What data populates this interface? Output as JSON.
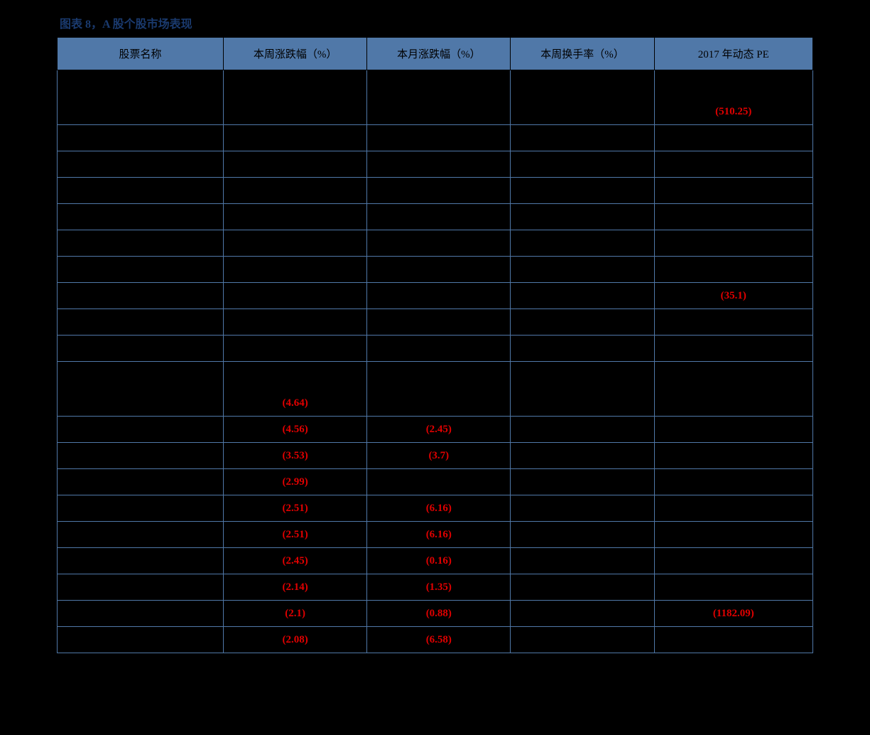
{
  "title": "图表 8，A 股个股市场表现",
  "table": {
    "header_bg": "#5078a8",
    "border_color": "#5078a8",
    "neg_color": "#e00000",
    "columns": [
      "股票名称",
      "本周涨跌幅（%）",
      "本月涨跌幅（%）",
      "本周换手率（%）",
      "2017 年动态 PE"
    ],
    "sections": [
      {
        "label": "",
        "rows": [
          {
            "cells": [
              "",
              "",
              "",
              "",
              {
                "text": "(510.25)",
                "neg": true
              }
            ]
          },
          {
            "cells": [
              "",
              "",
              "",
              "",
              ""
            ]
          },
          {
            "cells": [
              "",
              "",
              "",
              "",
              ""
            ]
          },
          {
            "cells": [
              "",
              "",
              "",
              "",
              ""
            ]
          },
          {
            "cells": [
              "",
              "",
              "",
              "",
              ""
            ]
          },
          {
            "cells": [
              "",
              "",
              "",
              "",
              ""
            ]
          },
          {
            "cells": [
              "",
              "",
              "",
              "",
              ""
            ]
          },
          {
            "cells": [
              "",
              "",
              "",
              "",
              {
                "text": "(35.1)",
                "neg": true
              }
            ]
          },
          {
            "cells": [
              "",
              "",
              "",
              "",
              ""
            ]
          },
          {
            "cells": [
              "",
              "",
              "",
              "",
              ""
            ]
          }
        ]
      },
      {
        "label": "",
        "rows": [
          {
            "cells": [
              "",
              {
                "text": "(4.64)",
                "neg": true
              },
              "",
              "",
              ""
            ]
          },
          {
            "cells": [
              "",
              {
                "text": "(4.56)",
                "neg": true
              },
              {
                "text": "(2.45)",
                "neg": true
              },
              "",
              ""
            ]
          },
          {
            "cells": [
              "",
              {
                "text": "(3.53)",
                "neg": true
              },
              {
                "text": "(3.7)",
                "neg": true
              },
              "",
              ""
            ]
          },
          {
            "cells": [
              "",
              {
                "text": "(2.99)",
                "neg": true
              },
              "",
              "",
              ""
            ]
          },
          {
            "cells": [
              "",
              {
                "text": "(2.51)",
                "neg": true
              },
              {
                "text": "(6.16)",
                "neg": true
              },
              "",
              ""
            ]
          },
          {
            "cells": [
              "",
              {
                "text": "(2.51)",
                "neg": true
              },
              {
                "text": "(6.16)",
                "neg": true
              },
              "",
              ""
            ]
          },
          {
            "cells": [
              "",
              {
                "text": "(2.45)",
                "neg": true
              },
              {
                "text": "(0.16)",
                "neg": true
              },
              "",
              ""
            ]
          },
          {
            "cells": [
              "",
              {
                "text": "(2.14)",
                "neg": true
              },
              {
                "text": "(1.35)",
                "neg": true
              },
              "",
              ""
            ]
          },
          {
            "cells": [
              "",
              {
                "text": "(2.1)",
                "neg": true
              },
              {
                "text": "(0.88)",
                "neg": true
              },
              "",
              {
                "text": "(1182.09)",
                "neg": true
              }
            ]
          },
          {
            "cells": [
              "",
              {
                "text": "(2.08)",
                "neg": true
              },
              {
                "text": "(6.58)",
                "neg": true
              },
              "",
              ""
            ]
          }
        ]
      }
    ]
  }
}
